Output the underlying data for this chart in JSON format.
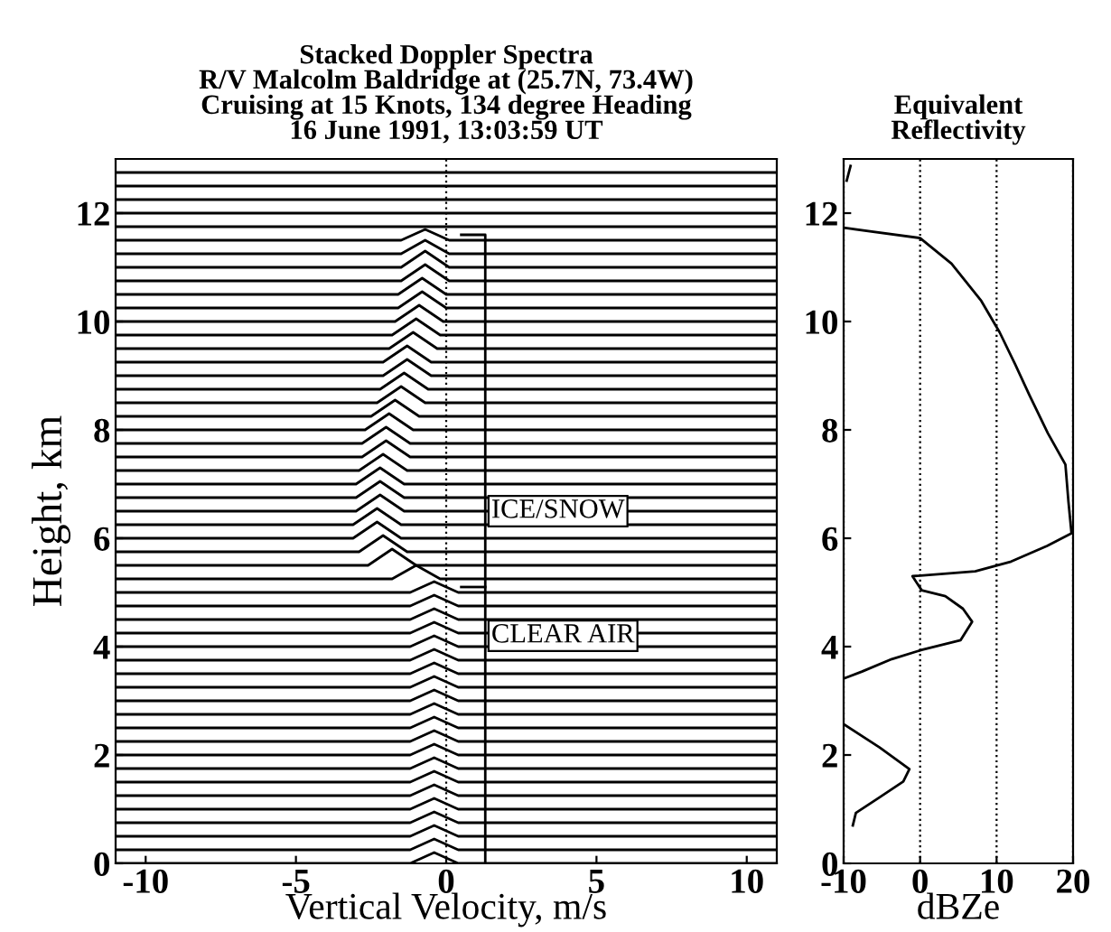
{
  "chart_data": [
    {
      "type": "line",
      "title": "Stacked Doppler Spectra\nR/V Malcolm Baldridge at (25.7N, 73.4W)\nCruising at 15 Knots, 134 degree Heading\n16 June 1991, 13:03:59 UT",
      "xlabel": "Vertical Velocity, m/s",
      "ylabel": "Height, km",
      "xlim": [
        -11,
        11
      ],
      "ylim": [
        0,
        13
      ],
      "xticks": [
        -10,
        -5,
        0,
        5,
        10
      ],
      "yticks": [
        0,
        2,
        4,
        6,
        8,
        10,
        12
      ],
      "grid": false,
      "legend": false,
      "ref_lines": [
        {
          "axis": "x",
          "value": 0,
          "line_style": "dotted",
          "color": "#000000"
        }
      ],
      "annotations": [
        {
          "text": "ICE/SNOW",
          "x": 1.5,
          "y": 6.5
        },
        {
          "text": "CLEAR AIR",
          "x": 1.5,
          "y": 4.2
        }
      ],
      "series": [
        {
          "color": "#000000",
          "x": [
            -11,
            -1.2,
            -0.4,
            0.4,
            11
          ],
          "values": [
            0,
            0,
            0.2,
            0,
            0
          ]
        },
        {
          "color": "#000000",
          "x": [
            -11,
            -1.2,
            -0.4,
            0.4,
            11
          ],
          "values": [
            0.25,
            0.25,
            0.45,
            0.25,
            0.25
          ]
        },
        {
          "color": "#000000",
          "x": [
            -11,
            -1.2,
            -0.4,
            0.4,
            11
          ],
          "values": [
            0.5,
            0.5,
            0.7,
            0.5,
            0.5
          ]
        },
        {
          "color": "#000000",
          "x": [
            -11,
            -1.2,
            -0.4,
            0.4,
            11
          ],
          "values": [
            0.75,
            0.75,
            0.95,
            0.75,
            0.75
          ]
        },
        {
          "color": "#000000",
          "x": [
            -11,
            -1.2,
            -0.4,
            0.4,
            11
          ],
          "values": [
            1,
            1,
            1.2,
            1,
            1
          ]
        },
        {
          "color": "#000000",
          "x": [
            -11,
            -1.2,
            -0.4,
            0.4,
            11
          ],
          "values": [
            1.25,
            1.25,
            1.45,
            1.25,
            1.25
          ]
        },
        {
          "color": "#000000",
          "x": [
            -11,
            -1.2,
            -0.4,
            0.4,
            11
          ],
          "values": [
            1.5,
            1.5,
            1.7,
            1.5,
            1.5
          ]
        },
        {
          "color": "#000000",
          "x": [
            -11,
            -1.2,
            -0.4,
            0.4,
            11
          ],
          "values": [
            1.75,
            1.75,
            1.95,
            1.75,
            1.75
          ]
        },
        {
          "color": "#000000",
          "x": [
            -11,
            -1.2,
            -0.4,
            0.4,
            11
          ],
          "values": [
            2,
            2,
            2.2,
            2,
            2
          ]
        },
        {
          "color": "#000000",
          "x": [
            -11,
            -1.2,
            -0.4,
            0.4,
            11
          ],
          "values": [
            2.25,
            2.25,
            2.45,
            2.25,
            2.25
          ]
        },
        {
          "color": "#000000",
          "x": [
            -11,
            -1.2,
            -0.4,
            0.4,
            11
          ],
          "values": [
            2.5,
            2.5,
            2.7,
            2.5,
            2.5
          ]
        },
        {
          "color": "#000000",
          "x": [
            -11,
            -1.2,
            -0.4,
            0.4,
            11
          ],
          "values": [
            2.75,
            2.75,
            2.95,
            2.75,
            2.75
          ]
        },
        {
          "color": "#000000",
          "x": [
            -11,
            -1.2,
            -0.4,
            0.4,
            11
          ],
          "values": [
            3,
            3,
            3.2,
            3,
            3
          ]
        },
        {
          "color": "#000000",
          "x": [
            -11,
            -1.2,
            -0.4,
            0.4,
            11
          ],
          "values": [
            3.25,
            3.25,
            3.45,
            3.25,
            3.25
          ]
        },
        {
          "color": "#000000",
          "x": [
            -11,
            -1.2,
            -0.4,
            0.4,
            11
          ],
          "values": [
            3.5,
            3.5,
            3.7,
            3.5,
            3.5
          ]
        },
        {
          "color": "#000000",
          "x": [
            -11,
            -1.2,
            -0.4,
            0.4,
            11
          ],
          "values": [
            3.75,
            3.75,
            3.95,
            3.75,
            3.75
          ]
        },
        {
          "color": "#000000",
          "x": [
            -11,
            -1.2,
            -0.4,
            0.4,
            11
          ],
          "values": [
            4,
            4,
            4.2,
            4,
            4
          ]
        },
        {
          "color": "#000000",
          "x": [
            -11,
            -1.2,
            -0.4,
            0.4,
            11
          ],
          "values": [
            4.25,
            4.25,
            4.45,
            4.25,
            4.25
          ]
        },
        {
          "color": "#000000",
          "x": [
            -11,
            -1.2,
            -0.4,
            0.4,
            11
          ],
          "values": [
            4.5,
            4.5,
            4.7,
            4.5,
            4.5
          ]
        },
        {
          "color": "#000000",
          "x": [
            -11,
            -1.2,
            -0.4,
            0.4,
            11
          ],
          "values": [
            4.75,
            4.75,
            4.95,
            4.75,
            4.75
          ]
        },
        {
          "color": "#000000",
          "x": [
            -11,
            -1.2,
            -0.4,
            0.4,
            11
          ],
          "values": [
            5,
            5,
            5.2,
            5,
            5
          ]
        },
        {
          "color": "#000000",
          "x": [
            -11,
            -1.8,
            -1.0,
            -0.2,
            11
          ],
          "values": [
            5.25,
            5.25,
            5.5,
            5.25,
            5.25
          ]
        },
        {
          "color": "#000000",
          "x": [
            -11,
            -2.6,
            -1.8,
            -1.0,
            11
          ],
          "values": [
            5.5,
            5.5,
            5.8,
            5.5,
            5.5
          ]
        },
        {
          "color": "#000000",
          "x": [
            -11,
            -2.9,
            -2.1,
            -1.3,
            11
          ],
          "values": [
            5.75,
            5.75,
            6.05,
            5.75,
            5.75
          ]
        },
        {
          "color": "#000000",
          "x": [
            -11,
            -3.1,
            -2.3,
            -1.5,
            11
          ],
          "values": [
            6,
            6,
            6.3,
            6,
            6
          ]
        },
        {
          "color": "#000000",
          "x": [
            -11,
            -3.1,
            -2.3,
            -1.5,
            11
          ],
          "values": [
            6.25,
            6.25,
            6.55,
            6.25,
            6.25
          ]
        },
        {
          "color": "#000000",
          "x": [
            -11,
            -3.0,
            -2.2,
            -1.4,
            11
          ],
          "values": [
            6.5,
            6.5,
            6.8,
            6.5,
            6.5
          ]
        },
        {
          "color": "#000000",
          "x": [
            -11,
            -3.0,
            -2.2,
            -1.4,
            11
          ],
          "values": [
            6.75,
            6.75,
            7.05,
            6.75,
            6.75
          ]
        },
        {
          "color": "#000000",
          "x": [
            -11,
            -3.0,
            -2.2,
            -1.4,
            11
          ],
          "values": [
            7,
            7,
            7.3,
            7,
            7
          ]
        },
        {
          "color": "#000000",
          "x": [
            -11,
            -2.9,
            -2.1,
            -1.3,
            11
          ],
          "values": [
            7.25,
            7.25,
            7.55,
            7.25,
            7.25
          ]
        },
        {
          "color": "#000000",
          "x": [
            -11,
            -2.8,
            -2.0,
            -1.2,
            11
          ],
          "values": [
            7.5,
            7.5,
            7.8,
            7.5,
            7.5
          ]
        },
        {
          "color": "#000000",
          "x": [
            -11,
            -2.8,
            -2.0,
            -1.2,
            11
          ],
          "values": [
            7.75,
            7.75,
            8.05,
            7.75,
            7.75
          ]
        },
        {
          "color": "#000000",
          "x": [
            -11,
            -2.7,
            -1.9,
            -1.1,
            11
          ],
          "values": [
            8,
            8,
            8.3,
            8,
            8
          ]
        },
        {
          "color": "#000000",
          "x": [
            -11,
            -2.5,
            -1.7,
            -0.9,
            11
          ],
          "values": [
            8.25,
            8.25,
            8.55,
            8.25,
            8.25
          ]
        },
        {
          "color": "#000000",
          "x": [
            -11,
            -2.3,
            -1.5,
            -0.7,
            11
          ],
          "values": [
            8.5,
            8.5,
            8.8,
            8.5,
            8.5
          ]
        },
        {
          "color": "#000000",
          "x": [
            -11,
            -2.2,
            -1.4,
            -0.6,
            11
          ],
          "values": [
            8.75,
            8.75,
            9.05,
            8.75,
            8.75
          ]
        },
        {
          "color": "#000000",
          "x": [
            -11,
            -2.1,
            -1.3,
            -0.5,
            11
          ],
          "values": [
            9,
            9,
            9.3,
            9,
            9
          ]
        },
        {
          "color": "#000000",
          "x": [
            -11,
            -2.1,
            -1.3,
            -0.5,
            11
          ],
          "values": [
            9.25,
            9.25,
            9.55,
            9.25,
            9.25
          ]
        },
        {
          "color": "#000000",
          "x": [
            -11,
            -1.9,
            -1.1,
            -0.3,
            11
          ],
          "values": [
            9.5,
            9.5,
            9.8,
            9.5,
            9.5
          ]
        },
        {
          "color": "#000000",
          "x": [
            -11,
            -1.8,
            -1.0,
            -0.2,
            11
          ],
          "values": [
            9.75,
            9.75,
            10.05,
            9.75,
            9.75
          ]
        },
        {
          "color": "#000000",
          "x": [
            -11,
            -1.7,
            -0.9,
            -0.1,
            11
          ],
          "values": [
            10,
            10,
            10.3,
            10,
            10
          ]
        },
        {
          "color": "#000000",
          "x": [
            -11,
            -1.6,
            -0.8,
            0,
            11
          ],
          "values": [
            10.25,
            10.25,
            10.55,
            10.25,
            10.25
          ]
        },
        {
          "color": "#000000",
          "x": [
            -11,
            -1.6,
            -0.8,
            0,
            11
          ],
          "values": [
            10.5,
            10.5,
            10.8,
            10.5,
            10.5
          ]
        },
        {
          "color": "#000000",
          "x": [
            -11,
            -1.5,
            -0.7,
            0.1,
            11
          ],
          "values": [
            10.75,
            10.75,
            11.05,
            10.75,
            10.75
          ]
        },
        {
          "color": "#000000",
          "x": [
            -11,
            -1.5,
            -0.7,
            0.1,
            11
          ],
          "values": [
            11,
            11,
            11.3,
            11,
            11
          ]
        },
        {
          "color": "#000000",
          "x": [
            -11,
            -1.5,
            -0.7,
            0.1,
            11
          ],
          "values": [
            11.25,
            11.25,
            11.5,
            11.25,
            11.25
          ]
        },
        {
          "color": "#000000",
          "x": [
            -11,
            -1.5,
            -0.7,
            0.1,
            11
          ],
          "values": [
            11.5,
            11.5,
            11.7,
            11.5,
            11.5
          ]
        },
        {
          "color": "#000000",
          "x": [
            -11,
            11
          ],
          "values": [
            11.75,
            11.75
          ]
        },
        {
          "color": "#000000",
          "x": [
            -11,
            11
          ],
          "values": [
            12,
            12
          ]
        },
        {
          "color": "#000000",
          "x": [
            -11,
            11
          ],
          "values": [
            12.25,
            12.25
          ]
        },
        {
          "color": "#000000",
          "x": [
            -11,
            11
          ],
          "values": [
            12.5,
            12.5
          ]
        },
        {
          "color": "#000000",
          "x": [
            -11,
            11
          ],
          "values": [
            12.75,
            12.75
          ]
        },
        {
          "color": "#000000",
          "x": [
            0.5,
            1.3,
            1.3
          ],
          "values": [
            11.6,
            11.6,
            0
          ]
        },
        {
          "color": "#000000",
          "x": [
            0.5,
            1.3
          ],
          "values": [
            5.1,
            5.1
          ]
        }
      ]
    },
    {
      "type": "line",
      "title": "Equivalent\nReflectivity",
      "xlabel": "dBZe",
      "xlim": [
        -10,
        20
      ],
      "ylim": [
        0,
        13
      ],
      "xticks": [
        -10,
        0,
        10,
        20
      ],
      "yticks": [
        0,
        2,
        4,
        6,
        8,
        10,
        12
      ],
      "grid": "x",
      "legend": false,
      "series": [
        {
          "color": "#000000",
          "x": [
            -9.6,
            -9.1,
            null,
            -10,
            0,
            4.1,
            8.0,
            10.4,
            12.4,
            14.3,
            16.7,
            19.0,
            19.4,
            19.8,
            16.6,
            11.9,
            7.2,
            -1.0,
            0.2,
            3.3,
            5.6,
            6.8,
            5.3,
            0.2,
            -3.7,
            -7.6,
            -9.8,
            null,
            -9.8,
            -5.3,
            -1.4,
            -2.2,
            -5.3,
            -8.4,
            -8.8
          ],
          "values": [
            12.6,
            12.87,
            null,
            11.73,
            11.54,
            11.07,
            10.38,
            9.8,
            9.22,
            8.64,
            7.94,
            7.36,
            6.67,
            6.09,
            5.86,
            5.57,
            5.39,
            5.3,
            5.04,
            4.93,
            4.7,
            4.46,
            4.12,
            3.94,
            3.77,
            3.54,
            3.42,
            null,
            2.55,
            2.14,
            1.74,
            1.51,
            1.22,
            0.93,
            0.7
          ]
        }
      ]
    }
  ]
}
